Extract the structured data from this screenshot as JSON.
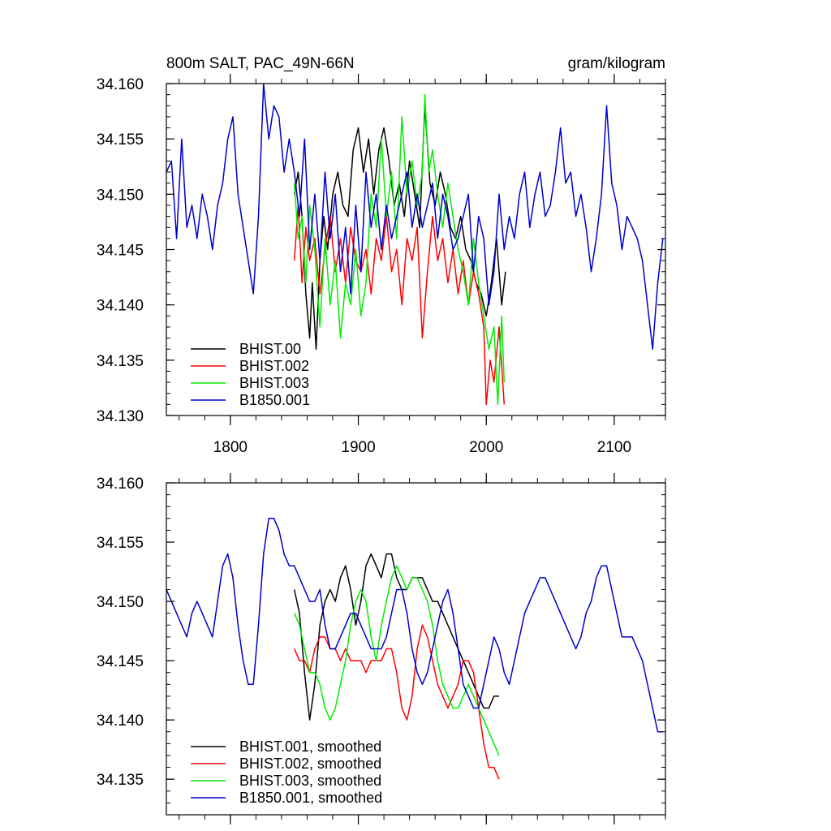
{
  "chart_data": [
    {
      "type": "line",
      "title": "800m SALT, PAC_49N-66N",
      "units": "gram/kilogram",
      "xlabel": "",
      "ylabel": "",
      "xlim": [
        1750,
        2140
      ],
      "ylim": [
        34.13,
        34.16
      ],
      "xticks": [
        1800,
        1900,
        2000,
        2100
      ],
      "xtick_labels": [
        "1800",
        "1900",
        "2000",
        "2100"
      ],
      "yticks": [
        34.13,
        34.135,
        34.14,
        34.145,
        34.15,
        34.155,
        34.16
      ],
      "ytick_labels": [
        "34.130",
        "34.135",
        "34.140",
        "34.145",
        "34.150",
        "34.155",
        "34.160"
      ],
      "legend_position": "bottom-left",
      "grid": false,
      "series": [
        {
          "name": "BHIST.00",
          "color": "#000000",
          "x": [
            1850,
            1853,
            1856,
            1859,
            1862,
            1864,
            1867,
            1870,
            1873,
            1876,
            1880,
            1884,
            1888,
            1892,
            1896,
            1900,
            1904,
            1908,
            1912,
            1916,
            1920,
            1924,
            1928,
            1932,
            1936,
            1940,
            1944,
            1948,
            1952,
            1956,
            1960,
            1964,
            1968,
            1972,
            1976,
            1980,
            1984,
            1988,
            1992,
            1996,
            2000,
            2004,
            2008,
            2012,
            2015
          ],
          "y": [
            34.15,
            34.152,
            34.148,
            34.141,
            34.137,
            34.142,
            34.136,
            34.144,
            34.148,
            34.145,
            34.15,
            34.152,
            34.149,
            34.148,
            34.154,
            34.156,
            34.152,
            34.155,
            34.15,
            34.154,
            34.156,
            34.153,
            34.149,
            34.151,
            34.148,
            34.153,
            34.15,
            34.147,
            34.158,
            34.151,
            34.149,
            34.152,
            34.15,
            34.147,
            34.146,
            34.148,
            34.145,
            34.144,
            34.142,
            34.141,
            34.139,
            34.142,
            34.146,
            34.14,
            34.143
          ]
        },
        {
          "name": "BHIST.002",
          "color": "#ff0000",
          "x": [
            1850,
            1853,
            1856,
            1859,
            1862,
            1866,
            1870,
            1874,
            1878,
            1882,
            1886,
            1890,
            1894,
            1898,
            1902,
            1906,
            1910,
            1914,
            1918,
            1922,
            1926,
            1930,
            1934,
            1938,
            1942,
            1946,
            1950,
            1954,
            1958,
            1962,
            1966,
            1970,
            1974,
            1978,
            1982,
            1986,
            1990,
            1994,
            1998,
            2000,
            2003,
            2006,
            2010,
            2014
          ],
          "y": [
            34.144,
            34.149,
            34.142,
            34.147,
            34.144,
            34.146,
            34.141,
            34.145,
            34.148,
            34.143,
            34.146,
            34.142,
            34.147,
            34.144,
            34.143,
            34.145,
            34.141,
            34.146,
            34.144,
            34.148,
            34.143,
            34.145,
            34.14,
            34.146,
            34.144,
            34.147,
            34.137,
            34.143,
            34.148,
            34.144,
            34.146,
            34.142,
            34.145,
            34.141,
            34.144,
            34.14,
            34.143,
            34.141,
            34.138,
            34.131,
            34.135,
            34.133,
            34.138,
            34.131
          ]
        },
        {
          "name": "BHIST.003",
          "color": "#00ee00",
          "x": [
            1850,
            1853,
            1856,
            1859,
            1862,
            1866,
            1870,
            1874,
            1878,
            1882,
            1886,
            1890,
            1894,
            1898,
            1902,
            1906,
            1910,
            1914,
            1918,
            1922,
            1926,
            1930,
            1934,
            1938,
            1942,
            1946,
            1950,
            1952,
            1955,
            1958,
            1962,
            1966,
            1970,
            1974,
            1978,
            1982,
            1986,
            1990,
            1994,
            1998,
            2002,
            2006,
            2009,
            2012,
            2014
          ],
          "y": [
            34.151,
            34.146,
            34.148,
            34.142,
            34.149,
            34.145,
            34.138,
            34.146,
            34.14,
            34.144,
            34.137,
            34.142,
            34.14,
            34.145,
            34.139,
            34.142,
            34.15,
            34.147,
            34.155,
            34.148,
            34.152,
            34.146,
            34.157,
            34.15,
            34.153,
            34.149,
            34.152,
            34.159,
            34.152,
            34.154,
            34.15,
            34.147,
            34.151,
            34.148,
            34.145,
            34.143,
            34.14,
            34.146,
            34.142,
            34.139,
            34.136,
            34.138,
            34.131,
            34.139,
            34.133
          ]
        },
        {
          "name": "B1850.001",
          "color": "#0000cc",
          "x": [
            1750,
            1754,
            1758,
            1762,
            1766,
            1770,
            1774,
            1778,
            1782,
            1786,
            1790,
            1794,
            1798,
            1802,
            1806,
            1810,
            1814,
            1818,
            1822,
            1826,
            1830,
            1834,
            1838,
            1842,
            1846,
            1850,
            1854,
            1858,
            1862,
            1866,
            1870,
            1874,
            1878,
            1882,
            1886,
            1890,
            1894,
            1898,
            1902,
            1906,
            1910,
            1914,
            1918,
            1922,
            1926,
            1930,
            1934,
            1938,
            1942,
            1946,
            1950,
            1954,
            1958,
            1962,
            1966,
            1970,
            1974,
            1978,
            1982,
            1986,
            1990,
            1994,
            1998,
            2002,
            2006,
            2010,
            2014,
            2018,
            2022,
            2026,
            2030,
            2034,
            2038,
            2042,
            2046,
            2050,
            2054,
            2058,
            2062,
            2066,
            2070,
            2074,
            2078,
            2082,
            2086,
            2090,
            2094,
            2098,
            2102,
            2106,
            2110,
            2114,
            2118,
            2122,
            2126,
            2130,
            2134,
            2138
          ],
          "y": [
            34.152,
            34.153,
            34.146,
            34.155,
            34.147,
            34.149,
            34.146,
            34.15,
            34.148,
            34.145,
            34.149,
            34.151,
            34.155,
            34.157,
            34.15,
            34.147,
            34.144,
            34.141,
            34.148,
            34.16,
            34.155,
            34.158,
            34.157,
            34.152,
            34.155,
            34.152,
            34.148,
            34.155,
            34.145,
            34.15,
            34.144,
            34.152,
            34.146,
            34.15,
            34.143,
            34.147,
            34.141,
            34.149,
            34.143,
            34.152,
            34.147,
            34.15,
            34.145,
            34.149,
            34.146,
            34.148,
            34.15,
            34.152,
            34.147,
            34.15,
            34.147,
            34.149,
            34.151,
            34.146,
            34.15,
            34.148,
            34.145,
            34.146,
            34.148,
            34.15,
            34.143,
            34.148,
            34.146,
            34.14,
            34.143,
            34.15,
            34.145,
            34.148,
            34.146,
            34.15,
            34.152,
            34.147,
            34.15,
            34.152,
            34.148,
            34.149,
            34.152,
            34.156,
            34.151,
            34.152,
            34.148,
            34.15,
            34.147,
            34.143,
            34.146,
            34.15,
            34.158,
            34.151,
            34.149,
            34.145,
            34.148,
            34.147,
            34.146,
            34.144,
            34.14,
            34.136,
            34.142,
            34.146
          ]
        }
      ]
    },
    {
      "type": "line",
      "title": "",
      "xlabel": "",
      "ylabel": "",
      "xlim": [
        1750,
        2140
      ],
      "ylim": [
        34.132,
        34.16
      ],
      "xticks": [
        1800,
        1900,
        2000,
        2100
      ],
      "yticks": [
        34.135,
        34.14,
        34.145,
        34.15,
        34.155,
        34.16
      ],
      "ytick_labels": [
        "34.135",
        "34.140",
        "34.145",
        "34.150",
        "34.155",
        "34.160"
      ],
      "legend_position": "bottom-left",
      "grid": false,
      "series": [
        {
          "name": "BHIST.001, smoothed",
          "color": "#000000",
          "x": [
            1850,
            1854,
            1858,
            1862,
            1866,
            1870,
            1874,
            1878,
            1882,
            1886,
            1890,
            1894,
            1898,
            1902,
            1906,
            1910,
            1914,
            1918,
            1922,
            1926,
            1930,
            1934,
            1938,
            1942,
            1946,
            1950,
            1954,
            1958,
            1962,
            1966,
            1970,
            1974,
            1978,
            1982,
            1986,
            1990,
            1994,
            1998,
            2002,
            2006,
            2010
          ],
          "y": [
            34.151,
            34.149,
            34.144,
            34.14,
            34.143,
            34.148,
            34.15,
            34.151,
            34.15,
            34.152,
            34.153,
            34.151,
            34.148,
            34.15,
            34.153,
            34.154,
            34.153,
            34.152,
            34.154,
            34.154,
            34.152,
            34.151,
            34.151,
            34.152,
            34.152,
            34.152,
            34.151,
            34.15,
            34.15,
            34.149,
            34.148,
            34.147,
            34.146,
            34.145,
            34.144,
            34.143,
            34.142,
            34.141,
            34.141,
            34.142,
            34.142
          ]
        },
        {
          "name": "BHIST.002, smoothed",
          "color": "#ff0000",
          "x": [
            1850,
            1854,
            1858,
            1862,
            1866,
            1870,
            1874,
            1878,
            1882,
            1886,
            1890,
            1894,
            1898,
            1902,
            1906,
            1910,
            1914,
            1918,
            1922,
            1926,
            1930,
            1934,
            1938,
            1942,
            1946,
            1950,
            1954,
            1958,
            1962,
            1966,
            1970,
            1974,
            1978,
            1982,
            1986,
            1990,
            1994,
            1998,
            2002,
            2006,
            2010
          ],
          "y": [
            34.146,
            34.145,
            34.145,
            34.144,
            34.146,
            34.147,
            34.147,
            34.146,
            34.146,
            34.145,
            34.146,
            34.145,
            34.145,
            34.145,
            34.144,
            34.145,
            34.145,
            34.145,
            34.146,
            34.146,
            34.144,
            34.141,
            34.14,
            34.142,
            34.146,
            34.148,
            34.147,
            34.145,
            34.143,
            34.142,
            34.141,
            34.142,
            34.143,
            34.145,
            34.145,
            34.144,
            34.141,
            34.138,
            34.136,
            34.136,
            34.135
          ]
        },
        {
          "name": "BHIST.003, smoothed",
          "color": "#00ee00",
          "x": [
            1850,
            1854,
            1858,
            1862,
            1866,
            1870,
            1874,
            1878,
            1882,
            1886,
            1890,
            1894,
            1898,
            1902,
            1906,
            1910,
            1914,
            1918,
            1922,
            1926,
            1930,
            1934,
            1938,
            1942,
            1946,
            1950,
            1954,
            1958,
            1962,
            1966,
            1970,
            1974,
            1978,
            1982,
            1986,
            1990,
            1994,
            1998,
            2002,
            2006,
            2010
          ],
          "y": [
            34.149,
            34.148,
            34.146,
            34.144,
            34.144,
            34.143,
            34.141,
            34.14,
            34.141,
            34.143,
            34.145,
            34.148,
            34.15,
            34.151,
            34.15,
            34.147,
            34.145,
            34.148,
            34.15,
            34.152,
            34.153,
            34.152,
            34.151,
            34.152,
            34.152,
            34.151,
            34.15,
            34.148,
            34.145,
            34.143,
            34.142,
            34.141,
            34.141,
            34.142,
            34.143,
            34.142,
            34.141,
            34.14,
            34.139,
            34.138,
            34.137
          ]
        },
        {
          "name": "B1850.001, smoothed",
          "color": "#0000cc",
          "x": [
            1750,
            1754,
            1758,
            1762,
            1766,
            1770,
            1774,
            1778,
            1782,
            1786,
            1790,
            1794,
            1798,
            1802,
            1806,
            1810,
            1814,
            1818,
            1822,
            1826,
            1830,
            1834,
            1838,
            1842,
            1846,
            1850,
            1854,
            1858,
            1862,
            1866,
            1870,
            1874,
            1878,
            1882,
            1886,
            1890,
            1894,
            1898,
            1902,
            1906,
            1910,
            1914,
            1918,
            1922,
            1926,
            1930,
            1934,
            1938,
            1942,
            1946,
            1950,
            1954,
            1958,
            1962,
            1966,
            1970,
            1974,
            1978,
            1982,
            1986,
            1990,
            1994,
            1998,
            2002,
            2006,
            2010,
            2014,
            2018,
            2022,
            2026,
            2030,
            2034,
            2038,
            2042,
            2046,
            2050,
            2054,
            2058,
            2062,
            2066,
            2070,
            2074,
            2078,
            2082,
            2086,
            2090,
            2094,
            2098,
            2102,
            2106,
            2110,
            2114,
            2118,
            2122,
            2126,
            2130,
            2134,
            2138
          ],
          "y": [
            34.151,
            34.15,
            34.149,
            34.148,
            34.147,
            34.149,
            34.15,
            34.149,
            34.148,
            34.147,
            34.15,
            34.153,
            34.154,
            34.152,
            34.148,
            34.145,
            34.143,
            34.143,
            34.148,
            34.154,
            34.157,
            34.157,
            34.156,
            34.154,
            34.153,
            34.153,
            34.152,
            34.151,
            34.15,
            34.15,
            34.151,
            34.148,
            34.146,
            34.146,
            34.147,
            34.148,
            34.149,
            34.149,
            34.148,
            34.147,
            34.146,
            34.146,
            34.146,
            34.147,
            34.149,
            34.151,
            34.151,
            34.149,
            34.146,
            34.144,
            34.143,
            34.144,
            34.146,
            34.148,
            34.15,
            34.151,
            34.149,
            34.146,
            34.143,
            34.142,
            34.141,
            34.141,
            34.143,
            34.145,
            34.147,
            34.146,
            34.144,
            34.143,
            34.145,
            34.147,
            34.149,
            34.15,
            34.151,
            34.152,
            34.152,
            34.151,
            34.15,
            34.149,
            34.148,
            34.147,
            34.146,
            34.147,
            34.149,
            34.15,
            34.152,
            34.153,
            34.153,
            34.151,
            34.149,
            34.147,
            34.147,
            34.147,
            34.146,
            34.145,
            34.143,
            34.141,
            34.139,
            34.139
          ]
        }
      ]
    }
  ]
}
